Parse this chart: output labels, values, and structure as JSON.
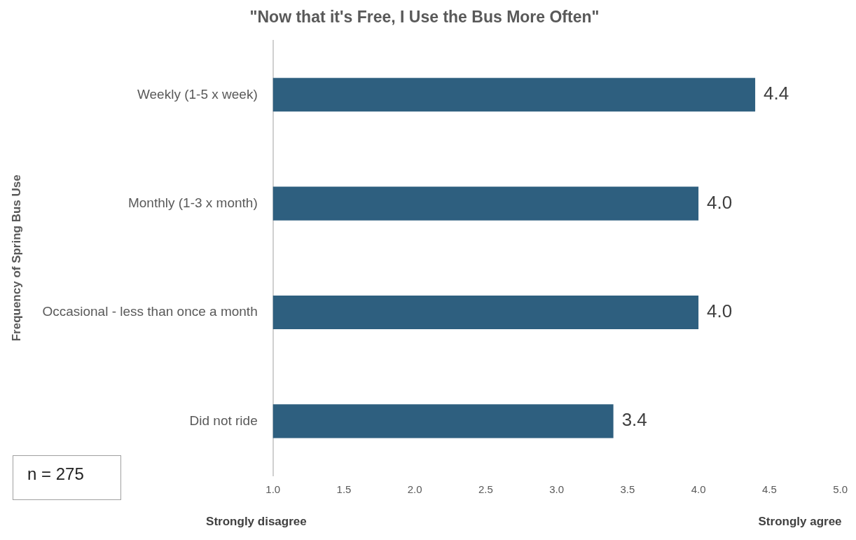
{
  "chart_data": {
    "type": "bar",
    "orientation": "horizontal",
    "title": "\"Now that it's Free, I Use the Bus More Often\"",
    "ylabel": "Frequency of Spring Bus Use",
    "categories": [
      "Weekly (1-5 x week)",
      "Monthly (1-3 x month)",
      "Occasional - less than once a month",
      "Did not ride"
    ],
    "values": [
      4.4,
      4.0,
      4.0,
      3.4
    ],
    "value_labels": [
      "4.4",
      "4.0",
      "4.0",
      "3.4"
    ],
    "color": "#2e5f7f",
    "xlim": [
      1,
      5
    ],
    "xticks": [
      {
        "value": 1,
        "label": "1.0"
      },
      {
        "value": 1.5,
        "label": "1.5"
      },
      {
        "value": 2,
        "label": "2.0"
      },
      {
        "value": 2.5,
        "label": "2.5"
      },
      {
        "value": 3,
        "label": "3.0"
      },
      {
        "value": 3.5,
        "label": "3.5"
      },
      {
        "value": 4,
        "label": "4.0"
      },
      {
        "value": 4.5,
        "label": "4.5"
      },
      {
        "value": 5,
        "label": "5.0"
      }
    ],
    "grid": false,
    "legend": false,
    "annotations": [
      "Strongly disagree",
      "Strongly agree",
      "n = 275"
    ]
  }
}
